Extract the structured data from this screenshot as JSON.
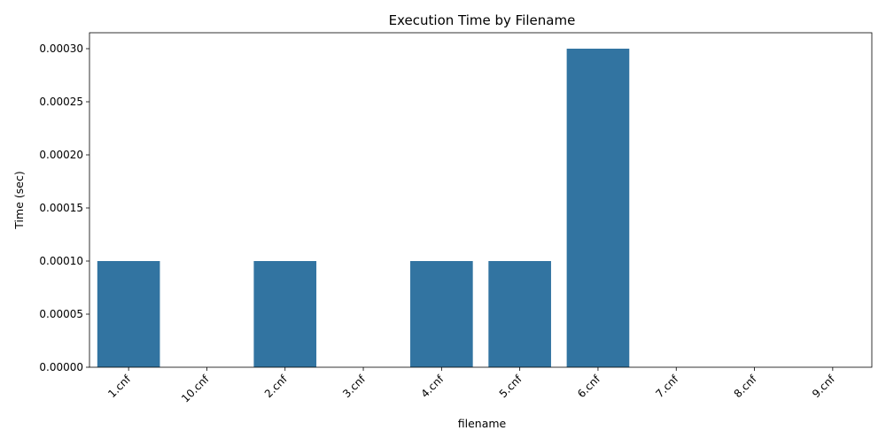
{
  "chart_data": {
    "type": "bar",
    "title": "Execution Time by Filename",
    "xlabel": "filename",
    "ylabel": "Time (sec)",
    "categories": [
      "1.cnf",
      "10.cnf",
      "2.cnf",
      "3.cnf",
      "4.cnf",
      "5.cnf",
      "6.cnf",
      "7.cnf",
      "8.cnf",
      "9.cnf"
    ],
    "values": [
      0.0001,
      0,
      0.0001,
      0,
      0.0001,
      0.0001,
      0.0003,
      0,
      0,
      0
    ],
    "ylim": [
      0,
      0.000315
    ],
    "yticks": [
      "0.00000",
      "0.00005",
      "0.00010",
      "0.00015",
      "0.00020",
      "0.00025",
      "0.00030"
    ],
    "ytick_values": [
      0,
      5e-05,
      0.0001,
      0.00015,
      0.0002,
      0.00025,
      0.0003
    ],
    "bar_color": "#3274a1",
    "grid": false,
    "legend": "none"
  }
}
